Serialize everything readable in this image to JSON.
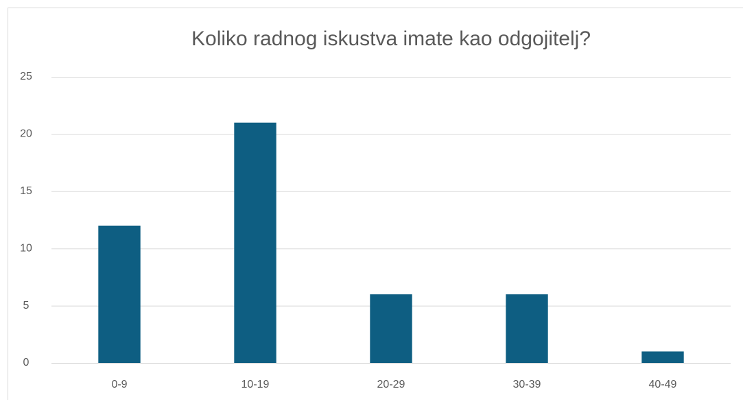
{
  "chart_data": {
    "type": "bar",
    "title": "Koliko radnog iskustva imate kao odgojitelj?",
    "categories": [
      "0-9",
      "10-19",
      "20-29",
      "30-39",
      "40-49"
    ],
    "values": [
      12,
      21,
      6,
      6,
      1
    ],
    "color": "#0e5e82",
    "ylim": [
      0,
      25
    ],
    "yticks": [
      0,
      5,
      10,
      15,
      20,
      25
    ],
    "grid": true
  }
}
